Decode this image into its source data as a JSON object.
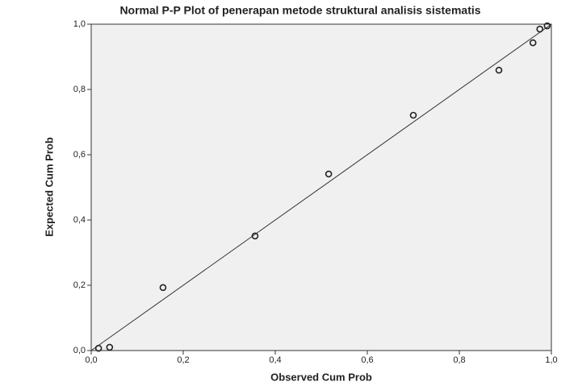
{
  "chart_data": {
    "type": "scatter",
    "title": "Normal P-P Plot of penerapan metode struktural analisis sistematis",
    "x_label": "Observed Cum Prob",
    "y_label": "Expected Cum Prob",
    "x": [
      0.016,
      0.04,
      0.156,
      0.356,
      0.516,
      0.7,
      0.886,
      0.96,
      0.975,
      0.991
    ],
    "values": [
      0.007,
      0.01,
      0.193,
      0.351,
      0.541,
      0.721,
      0.859,
      0.943,
      0.985,
      0.995
    ],
    "color": "#222222",
    "reference_line": true,
    "xlim": [
      0,
      1
    ],
    "ylim": [
      0,
      1
    ],
    "xticks": [
      {
        "value": 0,
        "label": "0,0"
      },
      {
        "value": 0.2,
        "label": "0,2"
      },
      {
        "value": 0.4,
        "label": "0,4"
      },
      {
        "value": 0.6,
        "label": "0,6"
      },
      {
        "value": 0.8,
        "label": "0,8"
      },
      {
        "value": 1,
        "label": "1,0"
      }
    ],
    "yticks": [
      {
        "value": 0,
        "label": "0,0"
      },
      {
        "value": 0.2,
        "label": "0,2"
      },
      {
        "value": 0.4,
        "label": "0,4"
      },
      {
        "value": 0.6,
        "label": "0,6"
      },
      {
        "value": 0.8,
        "label": "0,8"
      },
      {
        "value": 1,
        "label": "1,0"
      }
    ],
    "grid": false
  }
}
